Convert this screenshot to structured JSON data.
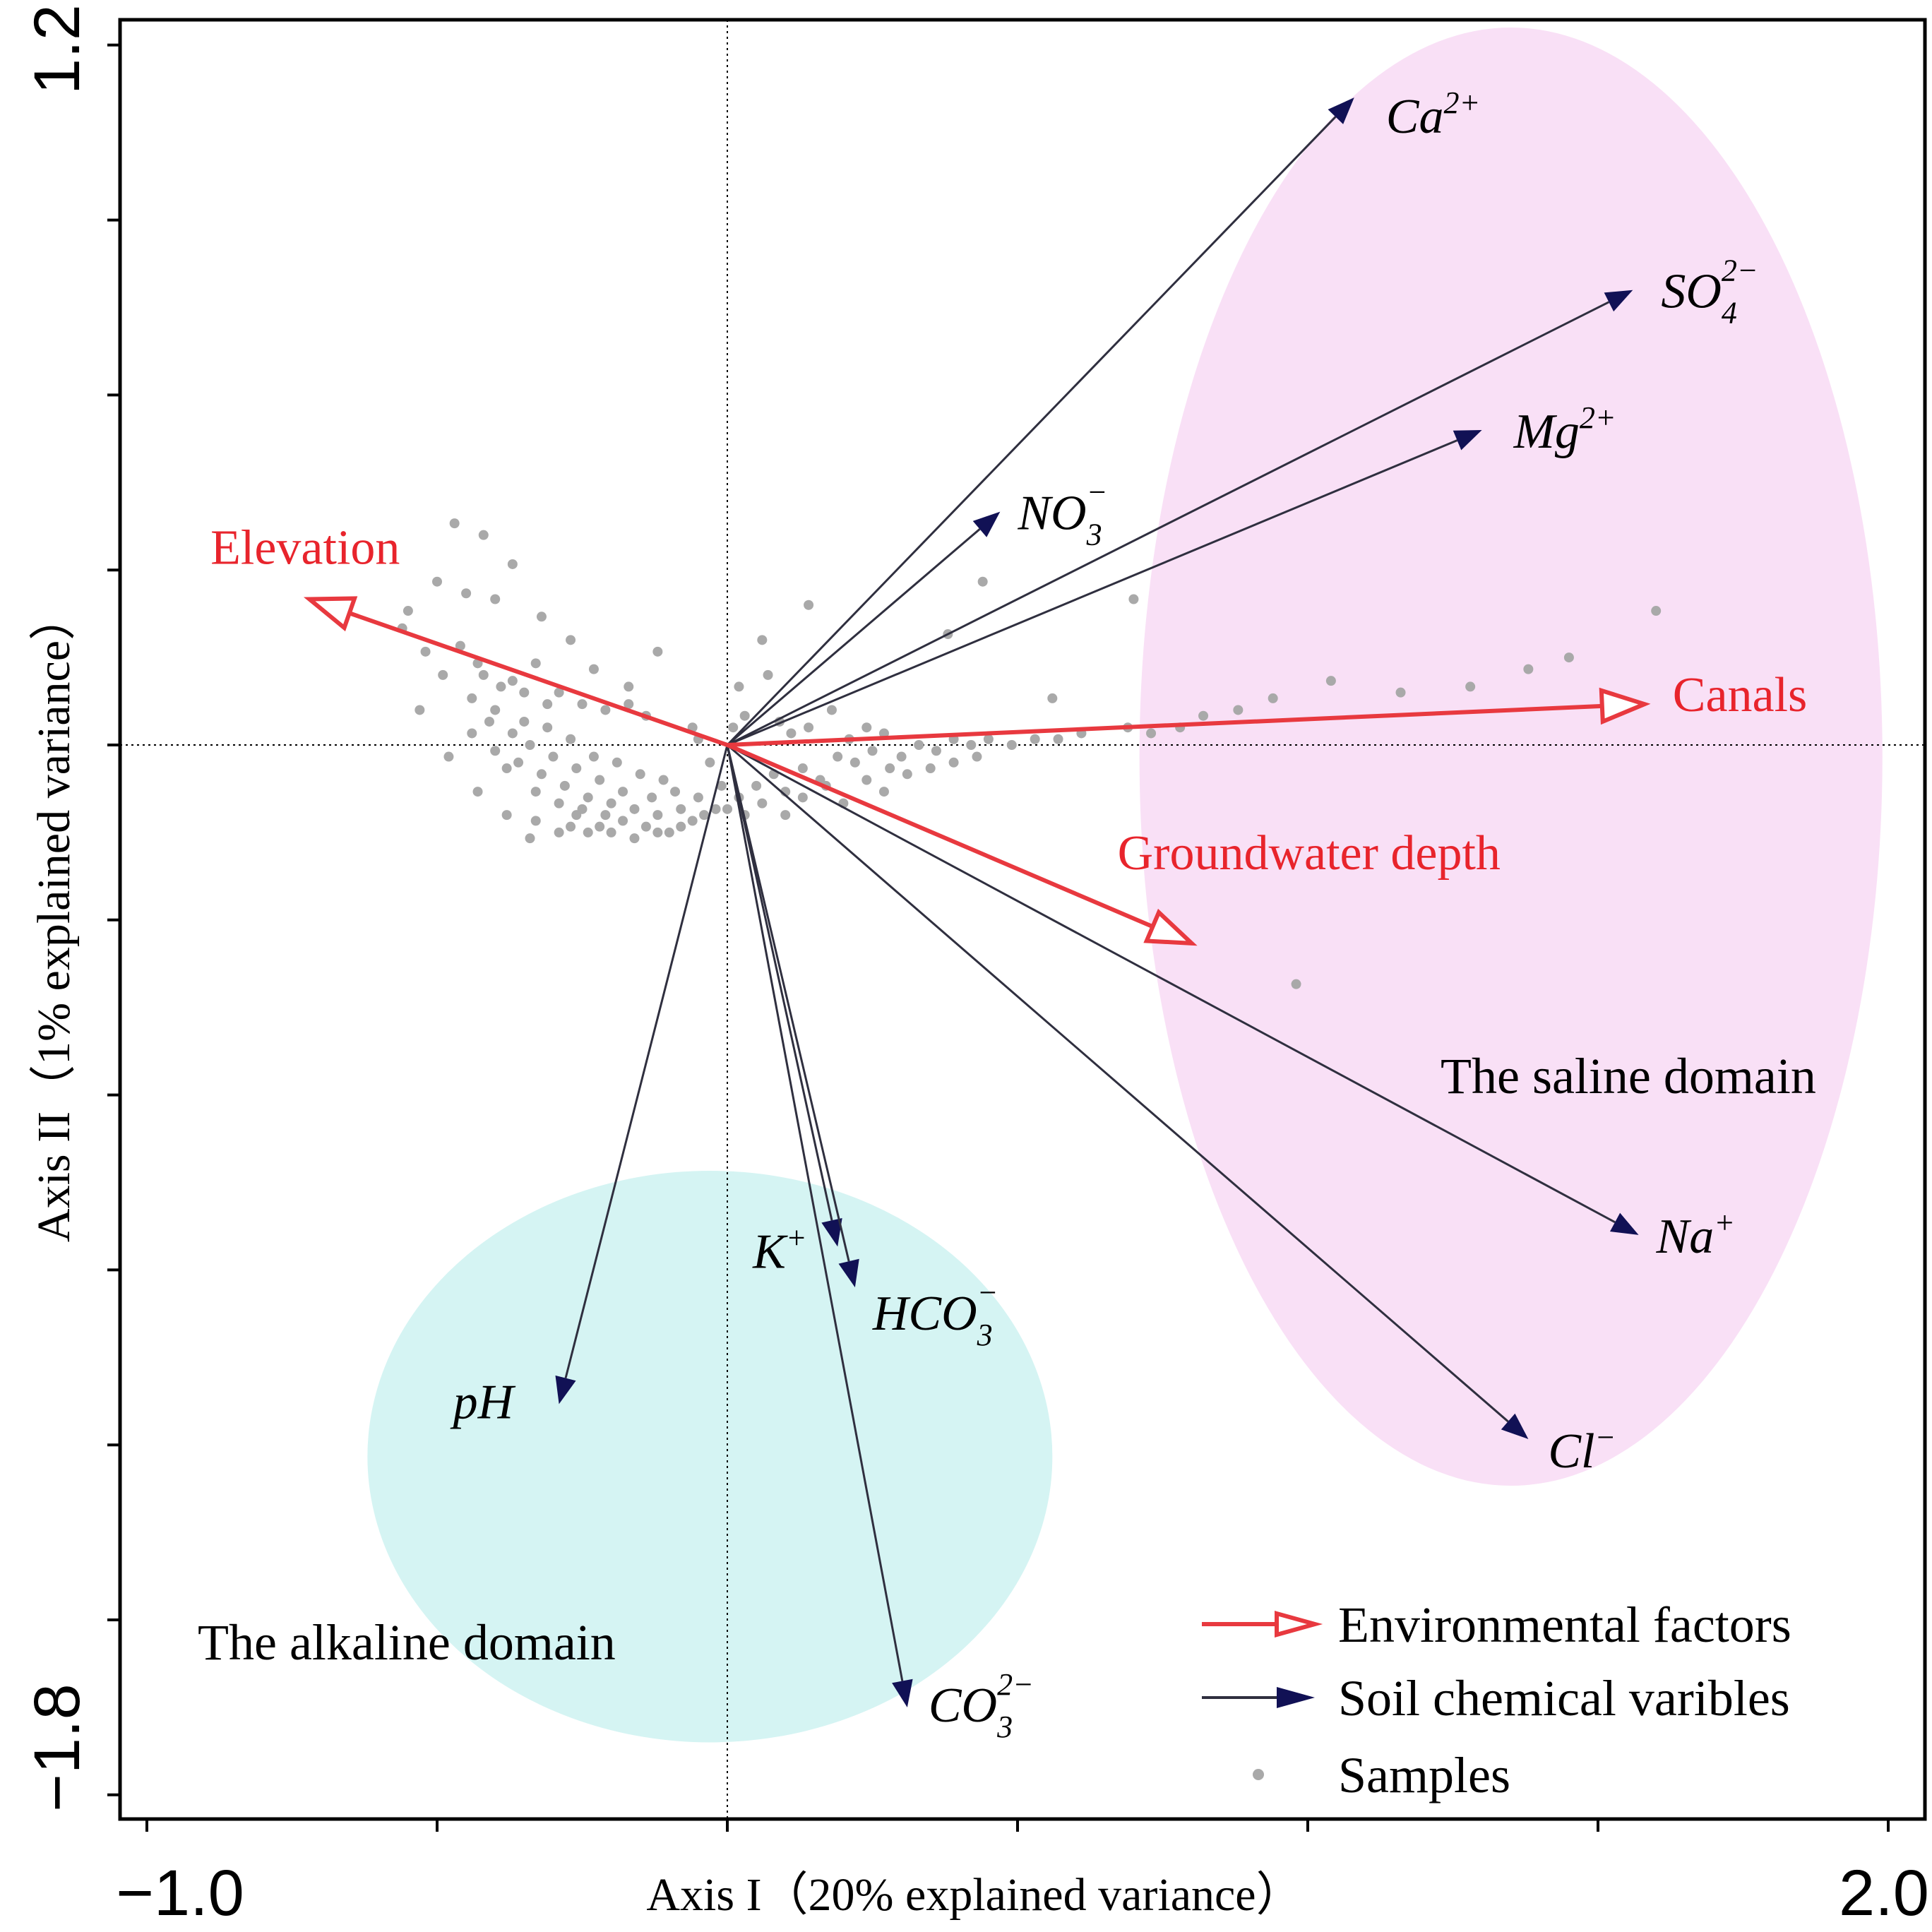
{
  "chart_data": {
    "type": "biplot",
    "title": "",
    "xlabel": "Axis I（20% explained variance）",
    "ylabel": "Axis II（1% explained variance）",
    "xlim": [
      -1.0,
      2.0
    ],
    "ylim": [
      -1.8,
      1.2
    ],
    "x_tick_labels": [
      {
        "value": -1.0,
        "label": "−1.0"
      },
      {
        "value": 2.0,
        "label": "2.0"
      }
    ],
    "y_tick_labels": [
      {
        "value": 1.2,
        "label": "1.2"
      },
      {
        "value": -1.8,
        "label": "−1.8"
      }
    ],
    "x_tick_values": [
      -1.0,
      -0.5,
      0.0,
      0.5,
      1.0,
      1.5,
      2.0
    ],
    "y_tick_values": [
      1.2,
      0.9,
      0.6,
      0.3,
      0.0,
      -0.3,
      -0.6,
      -0.9,
      -1.2,
      -1.5,
      -1.8
    ],
    "environmental_factors": [
      {
        "name": "Elevation",
        "x": -0.72,
        "y": 0.25
      },
      {
        "name": "Canals",
        "x": 1.58,
        "y": 0.07
      },
      {
        "name": "Groundwater depth",
        "x": 0.8,
        "y": -0.34
      }
    ],
    "soil_variables": [
      {
        "base": "Ca",
        "sub": "",
        "sup": "2+",
        "x": 1.08,
        "y": 1.11
      },
      {
        "base": "SO",
        "sub": "4",
        "sup": "2−",
        "x": 1.56,
        "y": 0.78
      },
      {
        "base": "Mg",
        "sub": "",
        "sup": "2+",
        "x": 1.3,
        "y": 0.54
      },
      {
        "base": "NO",
        "sub": "3",
        "sup": "−",
        "x": 0.47,
        "y": 0.4
      },
      {
        "base": "Na",
        "sub": "",
        "sup": "+",
        "x": 1.57,
        "y": -0.84
      },
      {
        "base": "Cl",
        "sub": "",
        "sup": "−",
        "x": 1.38,
        "y": -1.19
      },
      {
        "base": "pH",
        "sub": "",
        "sup": "",
        "x": -0.29,
        "y": -1.13
      },
      {
        "base": "K",
        "sub": "",
        "sup": "+",
        "x": 0.19,
        "y": -0.86
      },
      {
        "base": "HCO",
        "sub": "3",
        "sup": "−",
        "x": 0.22,
        "y": -0.93
      },
      {
        "base": "CO",
        "sub": "3",
        "sup": "2−",
        "x": 0.31,
        "y": -1.65
      }
    ],
    "domains": [
      {
        "name": "The saline domain",
        "cx": 1.35,
        "cy": -0.02,
        "rx": 0.64,
        "ry": 1.25
      },
      {
        "name": "The alkaline domain",
        "cx": -0.03,
        "cy": -1.22,
        "rx": 0.59,
        "ry": 0.49
      }
    ],
    "samples": [
      [
        -0.47,
        0.38
      ],
      [
        -0.42,
        0.36
      ],
      [
        -0.37,
        0.31
      ],
      [
        -0.5,
        0.28
      ],
      [
        -0.45,
        0.26
      ],
      [
        -0.4,
        0.25
      ],
      [
        -0.56,
        0.2
      ],
      [
        -0.32,
        0.22
      ],
      [
        -0.27,
        0.18
      ],
      [
        -0.23,
        0.13
      ],
      [
        -0.52,
        0.16
      ],
      [
        -0.46,
        0.17
      ],
      [
        -0.42,
        0.12
      ],
      [
        -0.37,
        0.11
      ],
      [
        -0.33,
        0.14
      ],
      [
        -0.29,
        0.09
      ],
      [
        -0.25,
        0.07
      ],
      [
        -0.21,
        0.06
      ],
      [
        -0.17,
        0.1
      ],
      [
        -0.14,
        0.05
      ],
      [
        -0.49,
        0.12
      ],
      [
        -0.44,
        0.08
      ],
      [
        -0.4,
        0.06
      ],
      [
        -0.35,
        0.04
      ],
      [
        -0.31,
        0.03
      ],
      [
        -0.27,
        0.01
      ],
      [
        -0.23,
        -0.02
      ],
      [
        -0.19,
        -0.03
      ],
      [
        -0.15,
        -0.05
      ],
      [
        -0.11,
        -0.06
      ],
      [
        -0.44,
        0.02
      ],
      [
        -0.4,
        -0.01
      ],
      [
        -0.36,
        -0.03
      ],
      [
        -0.32,
        -0.05
      ],
      [
        -0.28,
        -0.07
      ],
      [
        -0.24,
        -0.09
      ],
      [
        -0.2,
        -0.1
      ],
      [
        -0.16,
        -0.11
      ],
      [
        -0.12,
        -0.12
      ],
      [
        -0.08,
        -0.11
      ],
      [
        -0.43,
        -0.08
      ],
      [
        -0.38,
        -0.12
      ],
      [
        -0.33,
        -0.13
      ],
      [
        -0.29,
        -0.15
      ],
      [
        -0.26,
        -0.12
      ],
      [
        -0.22,
        -0.14
      ],
      [
        -0.18,
        -0.13
      ],
      [
        -0.14,
        -0.14
      ],
      [
        -0.1,
        -0.15
      ],
      [
        -0.06,
        -0.13
      ],
      [
        -0.38,
        -0.04
      ],
      [
        -0.34,
        0.0
      ],
      [
        -0.3,
        -0.02
      ],
      [
        -0.26,
        -0.04
      ],
      [
        -0.22,
        -0.06
      ],
      [
        -0.18,
        -0.08
      ],
      [
        -0.13,
        -0.09
      ],
      [
        -0.09,
        -0.08
      ],
      [
        -0.05,
        -0.09
      ],
      [
        -0.02,
        -0.11
      ],
      [
        -0.31,
        0.07
      ],
      [
        -0.35,
        0.09
      ],
      [
        -0.39,
        0.1
      ],
      [
        -0.43,
        0.14
      ],
      [
        -0.41,
        0.04
      ],
      [
        -0.37,
        0.02
      ],
      [
        -0.33,
        -0.08
      ],
      [
        -0.29,
        -0.1
      ],
      [
        -0.25,
        -0.11
      ],
      [
        -0.21,
        -0.12
      ],
      [
        -0.27,
        -0.14
      ],
      [
        -0.24,
        -0.15
      ],
      [
        -0.2,
        -0.15
      ],
      [
        -0.16,
        -0.16
      ],
      [
        -0.12,
        -0.15
      ],
      [
        -0.08,
        -0.14
      ],
      [
        -0.04,
        -0.12
      ],
      [
        0.0,
        -0.11
      ],
      [
        0.03,
        -0.12
      ],
      [
        0.06,
        -0.1
      ],
      [
        -0.06,
        0.03
      ],
      [
        -0.05,
        0.01
      ],
      [
        -0.03,
        -0.03
      ],
      [
        -0.01,
        -0.07
      ],
      [
        0.02,
        -0.09
      ],
      [
        0.05,
        -0.07
      ],
      [
        0.08,
        -0.05
      ],
      [
        0.1,
        -0.08
      ],
      [
        0.13,
        -0.04
      ],
      [
        0.16,
        -0.06
      ],
      [
        0.19,
        -0.02
      ],
      [
        0.22,
        -0.03
      ],
      [
        0.25,
        -0.01
      ],
      [
        0.28,
        -0.04
      ],
      [
        0.3,
        -0.02
      ],
      [
        0.33,
        0.0
      ],
      [
        0.36,
        -0.01
      ],
      [
        0.39,
        0.01
      ],
      [
        0.42,
        0.0
      ],
      [
        0.45,
        0.01
      ],
      [
        0.03,
        0.05
      ],
      [
        0.02,
        0.1
      ],
      [
        0.07,
        0.12
      ],
      [
        0.09,
        0.04
      ],
      [
        0.11,
        0.02
      ],
      [
        0.14,
        0.03
      ],
      [
        0.18,
        0.06
      ],
      [
        0.21,
        0.01
      ],
      [
        0.24,
        0.03
      ],
      [
        0.27,
        0.02
      ],
      [
        0.1,
        -0.12
      ],
      [
        0.13,
        -0.09
      ],
      [
        0.17,
        -0.07
      ],
      [
        0.2,
        -0.1
      ],
      [
        0.24,
        -0.06
      ],
      [
        0.27,
        -0.08
      ],
      [
        0.31,
        -0.05
      ],
      [
        0.35,
        -0.04
      ],
      [
        0.39,
        -0.03
      ],
      [
        0.43,
        -0.02
      ],
      [
        0.49,
        0.0
      ],
      [
        0.53,
        0.01
      ],
      [
        0.57,
        0.01
      ],
      [
        0.61,
        0.02
      ],
      [
        0.69,
        0.03
      ],
      [
        0.73,
        0.02
      ],
      [
        0.78,
        0.03
      ],
      [
        0.82,
        0.05
      ],
      [
        0.88,
        0.06
      ],
      [
        0.94,
        0.08
      ],
      [
        1.04,
        0.11
      ],
      [
        1.16,
        0.09
      ],
      [
        1.28,
        0.1
      ],
      [
        1.38,
        0.13
      ],
      [
        1.45,
        0.15
      ],
      [
        1.6,
        0.23
      ],
      [
        0.7,
        0.25
      ],
      [
        0.44,
        0.28
      ],
      [
        -0.12,
        0.16
      ],
      [
        0.14,
        0.24
      ],
      [
        0.98,
        -0.41
      ],
      [
        0.38,
        0.19
      ],
      [
        0.56,
        0.08
      ],
      [
        -0.48,
        -0.02
      ],
      [
        -0.34,
        -0.16
      ],
      [
        -0.17,
        0.07
      ],
      [
        0.01,
        0.03
      ],
      [
        -0.55,
        0.23
      ],
      [
        -0.53,
        0.06
      ],
      [
        0.06,
        0.18
      ]
    ]
  },
  "legend": {
    "environmental_label": "Environmental factors",
    "soil_label": "Soil chemical varibles",
    "samples_label": "Samples"
  },
  "colors": {
    "env": "#e8393f",
    "env_text": "#e8242c",
    "arrow_line": "#2f2f3f",
    "arrow_head": "#111155",
    "saline_fill": "#f9e0f6",
    "alkaline_fill": "#d5f4f3",
    "sample": "#a9a9a9"
  }
}
